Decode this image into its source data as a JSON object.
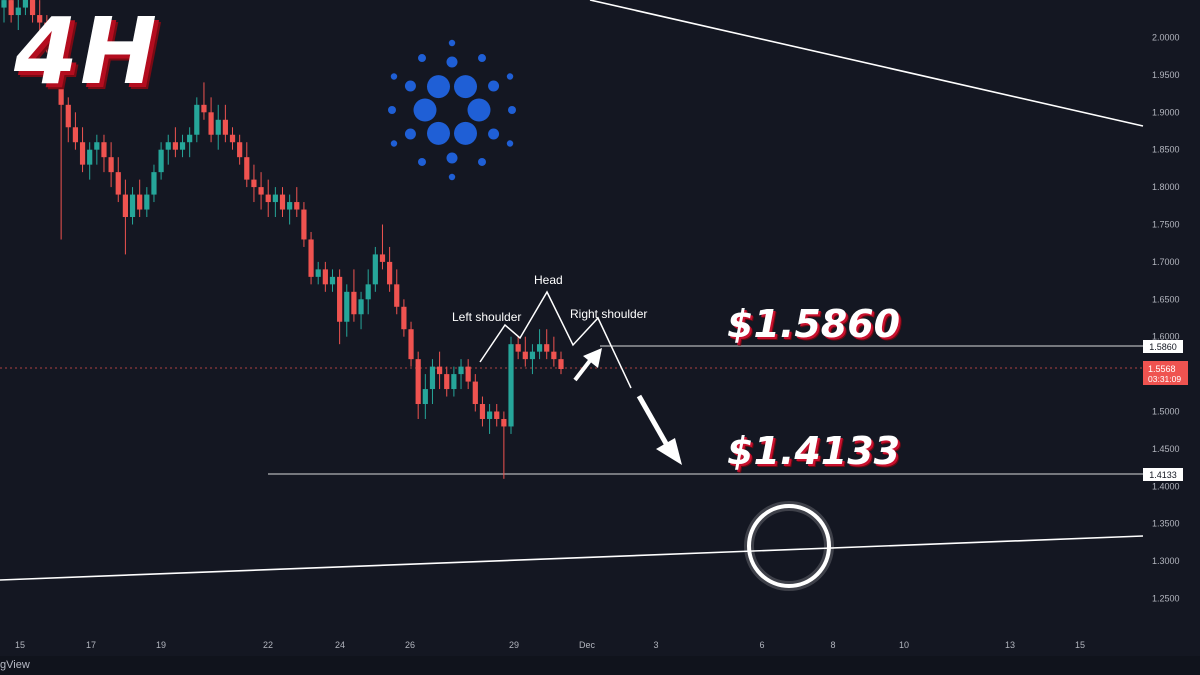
{
  "overlay": {
    "timeframe_label": "4H",
    "upper_price_callout": "$1.5860",
    "lower_price_callout": "$1.4133",
    "logo_name": "cardano-logo",
    "footer_text": "gView"
  },
  "pattern_labels": {
    "left_shoulder": "Left shoulder",
    "head": "Head",
    "right_shoulder": "Right shoulder"
  },
  "price_tags": {
    "resistance": "1.5860",
    "support": "1.4133",
    "current_price": "1.5568",
    "countdown": "03:31:09"
  },
  "colors": {
    "background": "#141722",
    "up_candle": "#26a69a",
    "down_candle": "#ef5350",
    "current_price_tag": "#ef5350",
    "logo_blue": "#1f5fd6"
  },
  "chart_data": {
    "type": "candlestick",
    "title": "",
    "xlabel": "",
    "ylabel": "",
    "x_ticks": [
      "15",
      "17",
      "19",
      "22",
      "24",
      "26",
      "29",
      "Dec",
      "3",
      "6",
      "8",
      "10",
      "13",
      "15"
    ],
    "y_ticks": [
      "2.0000",
      "1.9500",
      "1.9000",
      "1.8500",
      "1.8000",
      "1.7500",
      "1.7000",
      "1.6500",
      "1.6000",
      "1.5500",
      "1.5000",
      "1.4500",
      "1.4000",
      "1.3500",
      "1.3000",
      "1.2500"
    ],
    "ylim": [
      1.21,
      2.05
    ],
    "grid": false,
    "horizontal_levels": [
      1.586,
      1.4133
    ],
    "current_price": 1.5568,
    "candles_ohlc": [
      [
        2.04,
        2.06,
        2.02,
        2.05
      ],
      [
        2.05,
        2.07,
        2.02,
        2.03
      ],
      [
        2.03,
        2.06,
        2.01,
        2.04
      ],
      [
        2.04,
        2.08,
        2.03,
        2.06
      ],
      [
        2.06,
        2.07,
        2.02,
        2.03
      ],
      [
        2.03,
        2.05,
        2.0,
        2.02
      ],
      [
        2.02,
        2.03,
        1.98,
        1.99
      ],
      [
        1.99,
        2.01,
        1.94,
        1.95
      ],
      [
        1.95,
        1.96,
        1.73,
        1.91
      ],
      [
        1.91,
        1.92,
        1.86,
        1.88
      ],
      [
        1.88,
        1.9,
        1.85,
        1.86
      ],
      [
        1.86,
        1.88,
        1.82,
        1.83
      ],
      [
        1.83,
        1.86,
        1.81,
        1.85
      ],
      [
        1.85,
        1.87,
        1.83,
        1.86
      ],
      [
        1.86,
        1.87,
        1.82,
        1.84
      ],
      [
        1.84,
        1.86,
        1.8,
        1.82
      ],
      [
        1.82,
        1.84,
        1.78,
        1.79
      ],
      [
        1.79,
        1.81,
        1.71,
        1.76
      ],
      [
        1.76,
        1.8,
        1.75,
        1.79
      ],
      [
        1.79,
        1.81,
        1.76,
        1.77
      ],
      [
        1.77,
        1.8,
        1.76,
        1.79
      ],
      [
        1.79,
        1.83,
        1.78,
        1.82
      ],
      [
        1.82,
        1.86,
        1.81,
        1.85
      ],
      [
        1.85,
        1.87,
        1.83,
        1.86
      ],
      [
        1.86,
        1.88,
        1.84,
        1.85
      ],
      [
        1.85,
        1.87,
        1.84,
        1.86
      ],
      [
        1.86,
        1.88,
        1.84,
        1.87
      ],
      [
        1.87,
        1.92,
        1.86,
        1.91
      ],
      [
        1.91,
        1.94,
        1.89,
        1.9
      ],
      [
        1.9,
        1.92,
        1.86,
        1.87
      ],
      [
        1.87,
        1.91,
        1.85,
        1.89
      ],
      [
        1.89,
        1.91,
        1.86,
        1.87
      ],
      [
        1.87,
        1.88,
        1.85,
        1.86
      ],
      [
        1.86,
        1.87,
        1.83,
        1.84
      ],
      [
        1.84,
        1.86,
        1.8,
        1.81
      ],
      [
        1.81,
        1.83,
        1.78,
        1.8
      ],
      [
        1.8,
        1.82,
        1.77,
        1.79
      ],
      [
        1.79,
        1.81,
        1.76,
        1.78
      ],
      [
        1.78,
        1.8,
        1.76,
        1.79
      ],
      [
        1.79,
        1.8,
        1.76,
        1.77
      ],
      [
        1.77,
        1.79,
        1.75,
        1.78
      ],
      [
        1.78,
        1.8,
        1.76,
        1.77
      ],
      [
        1.77,
        1.78,
        1.72,
        1.73
      ],
      [
        1.73,
        1.74,
        1.67,
        1.68
      ],
      [
        1.68,
        1.7,
        1.67,
        1.69
      ],
      [
        1.69,
        1.7,
        1.66,
        1.67
      ],
      [
        1.67,
        1.69,
        1.66,
        1.68
      ],
      [
        1.68,
        1.69,
        1.59,
        1.62
      ],
      [
        1.62,
        1.67,
        1.6,
        1.66
      ],
      [
        1.66,
        1.69,
        1.62,
        1.63
      ],
      [
        1.63,
        1.66,
        1.61,
        1.65
      ],
      [
        1.65,
        1.69,
        1.63,
        1.67
      ],
      [
        1.67,
        1.72,
        1.66,
        1.71
      ],
      [
        1.71,
        1.75,
        1.69,
        1.7
      ],
      [
        1.7,
        1.72,
        1.66,
        1.67
      ],
      [
        1.67,
        1.69,
        1.63,
        1.64
      ],
      [
        1.64,
        1.65,
        1.6,
        1.61
      ],
      [
        1.61,
        1.62,
        1.56,
        1.57
      ],
      [
        1.57,
        1.58,
        1.49,
        1.51
      ],
      [
        1.51,
        1.55,
        1.49,
        1.53
      ],
      [
        1.53,
        1.57,
        1.51,
        1.56
      ],
      [
        1.56,
        1.58,
        1.53,
        1.55
      ],
      [
        1.55,
        1.56,
        1.52,
        1.53
      ],
      [
        1.53,
        1.56,
        1.52,
        1.55
      ],
      [
        1.55,
        1.57,
        1.53,
        1.56
      ],
      [
        1.56,
        1.57,
        1.53,
        1.54
      ],
      [
        1.54,
        1.55,
        1.5,
        1.51
      ],
      [
        1.51,
        1.52,
        1.48,
        1.49
      ],
      [
        1.49,
        1.51,
        1.47,
        1.5
      ],
      [
        1.5,
        1.51,
        1.48,
        1.49
      ],
      [
        1.49,
        1.5,
        1.41,
        1.48
      ],
      [
        1.48,
        1.6,
        1.47,
        1.59
      ],
      [
        1.59,
        1.6,
        1.57,
        1.58
      ],
      [
        1.58,
        1.6,
        1.56,
        1.57
      ],
      [
        1.57,
        1.59,
        1.55,
        1.58
      ],
      [
        1.58,
        1.61,
        1.57,
        1.59
      ],
      [
        1.59,
        1.61,
        1.57,
        1.58
      ],
      [
        1.58,
        1.6,
        1.56,
        1.57
      ],
      [
        1.57,
        1.58,
        1.55,
        1.5568
      ]
    ]
  }
}
